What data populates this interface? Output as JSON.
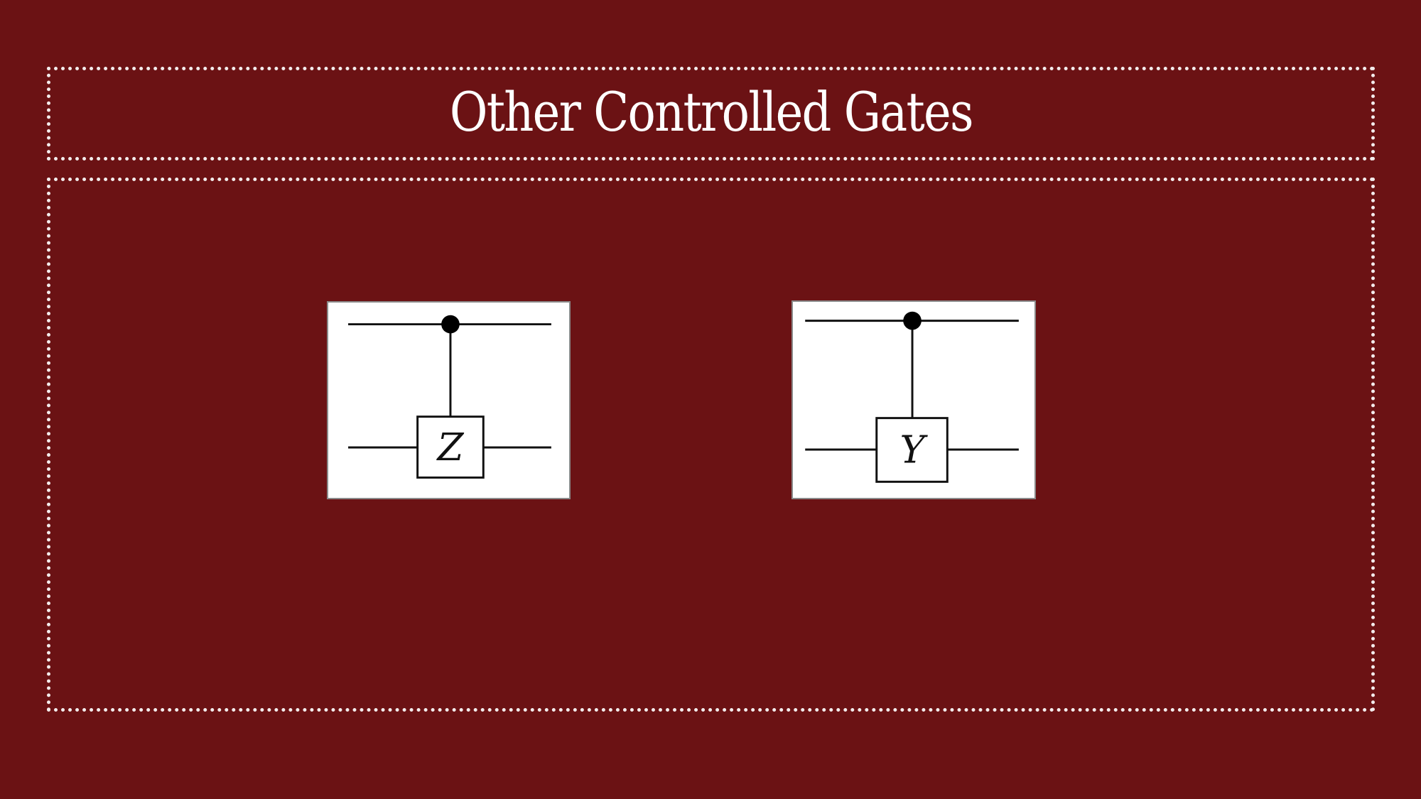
{
  "slide": {
    "title": "Other Controlled Gates",
    "background_color": "#6b1214",
    "frame_color": "#f3ecec"
  },
  "circuits": [
    {
      "gate_label": "Z",
      "control": "filled-dot",
      "target": "box"
    },
    {
      "gate_label": "Y",
      "control": "filled-dot",
      "target": "box"
    }
  ]
}
